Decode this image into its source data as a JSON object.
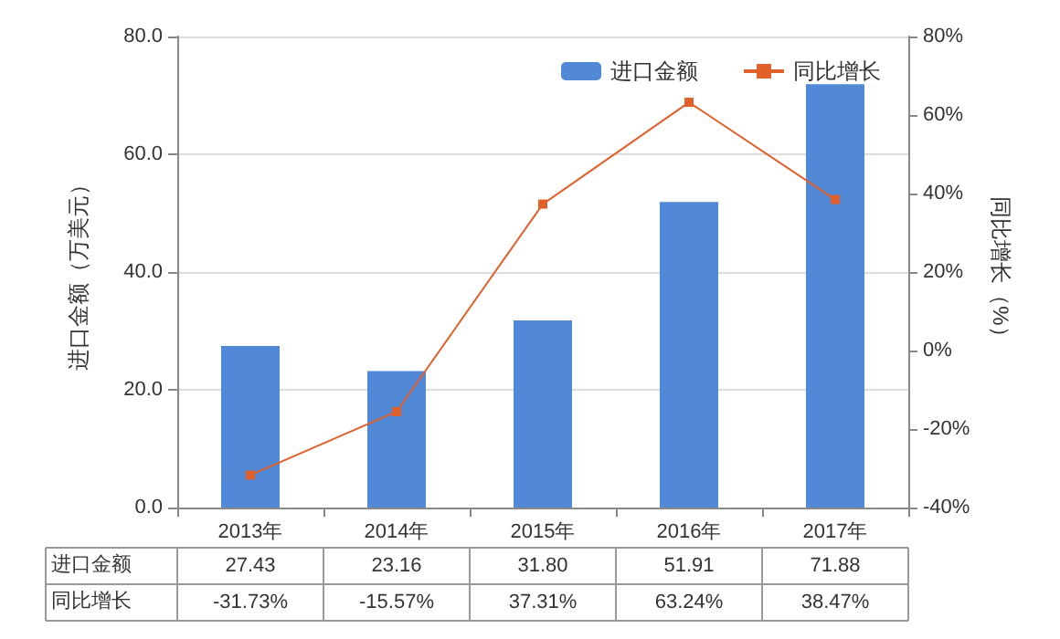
{
  "chart_data": {
    "type": "bar",
    "ylabel": "进口金额（万美元）",
    "y2label": "同比增长（%）",
    "categories": [
      "2013年",
      "2014年",
      "2015年",
      "2016年",
      "2017年"
    ],
    "series": [
      {
        "name": "进口金额",
        "color": "#5289d6",
        "values": [
          27.43,
          23.16,
          31.8,
          51.91,
          71.88
        ],
        "value_labels": [
          "27.43",
          "23.16",
          "31.80",
          "51.91",
          "71.88"
        ]
      },
      {
        "name": "同比增长",
        "type": "line",
        "axis": "y2",
        "color": "#e2602a",
        "values": [
          -31.73,
          -15.57,
          37.31,
          63.24,
          38.47
        ],
        "value_labels": [
          "-31.73%",
          "-15.57%",
          "37.31%",
          "63.24%",
          "38.47%"
        ]
      }
    ],
    "ylim": [
      0,
      80
    ],
    "yticks": [
      {
        "value": 0,
        "label": "0.0"
      },
      {
        "value": 20,
        "label": "20.0"
      },
      {
        "value": 40,
        "label": "40.0"
      },
      {
        "value": 60,
        "label": "60.0"
      },
      {
        "value": 80,
        "label": "80.0"
      }
    ],
    "y2lim": [
      -40,
      80
    ],
    "y2ticks": [
      {
        "value": -40,
        "label": "-40%"
      },
      {
        "value": -20,
        "label": "-20%"
      },
      {
        "value": 0,
        "label": "0%"
      },
      {
        "value": 20,
        "label": "20%"
      },
      {
        "value": 40,
        "label": "40%"
      },
      {
        "value": 60,
        "label": "60%"
      },
      {
        "value": 80,
        "label": "80%"
      }
    ],
    "grid": "y",
    "legend": "top right",
    "marker": "square"
  }
}
